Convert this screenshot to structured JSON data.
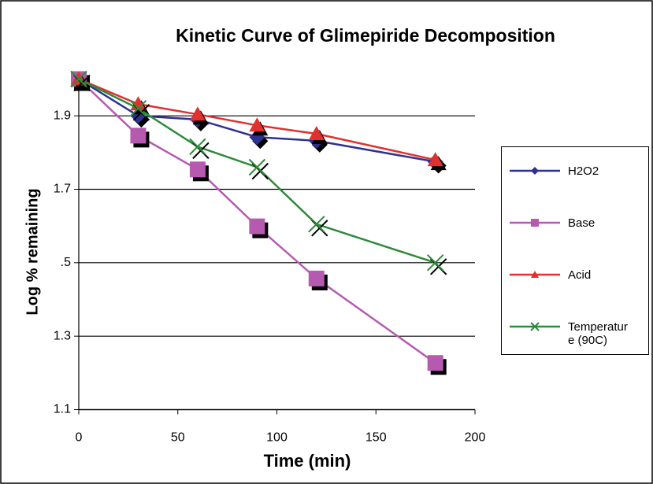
{
  "chart_data": {
    "type": "line",
    "title": "Kinetic Curve of Glimepiride Decomposition",
    "x_label": "Time (min)",
    "y_label": "Log % remaining",
    "x": [
      0,
      30,
      60,
      90,
      120,
      180
    ],
    "series": [
      {
        "name": "H2O2",
        "color": "#2e3192",
        "marker": "diamond",
        "values": [
          2.0,
          1.9,
          1.89,
          1.842,
          1.832,
          1.775
        ]
      },
      {
        "name": "Base",
        "color": "#b65ab0",
        "marker": "square",
        "values": [
          2.0,
          1.846,
          1.754,
          1.599,
          1.457,
          1.227
        ]
      },
      {
        "name": "Acid",
        "color": "#e0312f",
        "marker": "triangle",
        "values": [
          2.0,
          1.932,
          1.904,
          1.874,
          1.851,
          1.78
        ]
      },
      {
        "name": "Temperature (90C)",
        "color": "#2e8b3a",
        "marker": "x",
        "values": [
          2.0,
          1.92,
          1.816,
          1.76,
          1.605,
          1.5
        ]
      }
    ],
    "xlim": [
      0,
      200
    ],
    "xticks": [
      0,
      50,
      100,
      150,
      200
    ],
    "ylim": [
      1.1,
      2.0
    ],
    "yticks": [
      1.1,
      1.3,
      {
        "value": 1.5,
        "label": ".5"
      },
      1.7,
      1.9
    ],
    "grid": true
  }
}
